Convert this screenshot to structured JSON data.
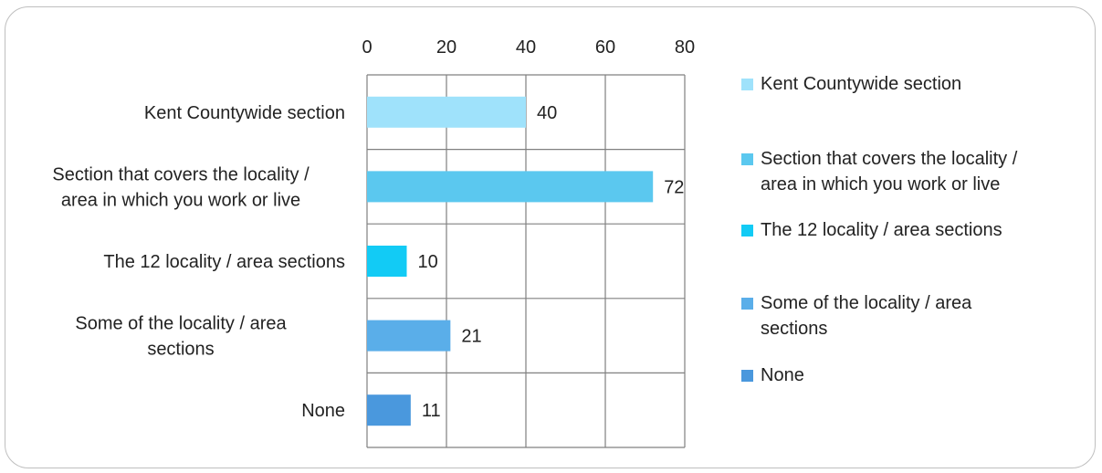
{
  "chart_data": {
    "type": "bar",
    "orientation": "horizontal",
    "categories": [
      "Kent Countywide section",
      "Section that covers the locality / area in which you work or live",
      "The 12 locality / area sections",
      "Some of the locality / area sections",
      "None"
    ],
    "values": [
      40,
      72,
      10,
      21,
      11
    ],
    "colors": [
      "#9fe2fb",
      "#5bc8ef",
      "#12cbf5",
      "#5aaee9",
      "#4a98dd"
    ],
    "xlim": [
      0,
      80
    ],
    "xticks": [
      0,
      20,
      40,
      60,
      80
    ],
    "x_axis_position": "top",
    "grid": true,
    "legend_position": "right",
    "legend": [
      "Kent Countywide section",
      "Section that covers the locality / area in which you work or live",
      "The 12 locality / area sections",
      "Some of the locality / area sections",
      "None"
    ]
  }
}
